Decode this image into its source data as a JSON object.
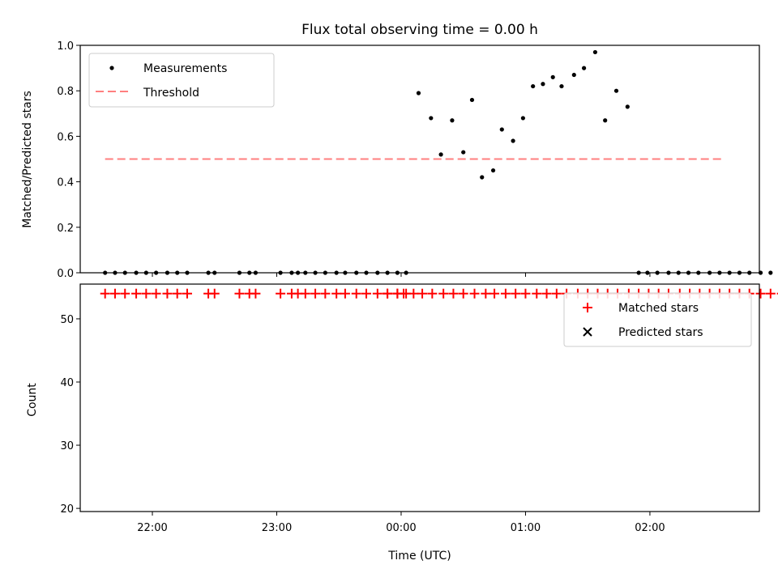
{
  "chart_data": [
    {
      "type": "scatter",
      "title": "Flux total observing time = 0.00 h",
      "xlabel": "",
      "ylabel": "Matched/Predicted stars",
      "ylim": [
        0,
        1.0
      ],
      "yticks": [
        0.0,
        0.2,
        0.4,
        0.6,
        0.8,
        1.0
      ],
      "ytick_labels": [
        "0.0",
        "0.2",
        "0.4",
        "0.6",
        "0.8",
        "1.0"
      ],
      "xlim_hours": [
        21.42,
        26.88
      ],
      "grid": false,
      "legend": {
        "position": "upper-left",
        "entries": [
          "Measurements",
          "Threshold"
        ]
      },
      "colors": {
        "measurements": "#000000",
        "threshold": "#ff7f7f"
      },
      "threshold": {
        "value": 0.5,
        "x_start": 21.62,
        "x_end": 26.58
      },
      "series": [
        {
          "name": "Measurements",
          "x": [
            21.62,
            21.7,
            21.78,
            21.87,
            21.95,
            22.03,
            22.12,
            22.2,
            22.28,
            22.45,
            22.5,
            22.7,
            22.78,
            22.83,
            23.03,
            23.12,
            23.17,
            23.23,
            23.31,
            23.39,
            23.48,
            23.55,
            23.64,
            23.72,
            23.81,
            23.89,
            23.97,
            24.04,
            24.14,
            24.24,
            24.32,
            24.41,
            24.5,
            24.57,
            24.65,
            24.74,
            24.81,
            24.9,
            24.98,
            25.06,
            25.14,
            25.22,
            25.29,
            25.39,
            25.47,
            25.56,
            25.64,
            25.73,
            25.82,
            25.91,
            25.98,
            26.06,
            26.15,
            26.23,
            26.31,
            26.39,
            26.48,
            26.56,
            26.64,
            26.72,
            26.8,
            26.89,
            26.97,
            27.06
          ],
          "y": [
            0,
            0,
            0,
            0,
            0,
            0,
            0,
            0,
            0,
            0,
            0,
            0,
            0,
            0,
            0,
            0,
            0,
            0,
            0,
            0,
            0,
            0,
            0,
            0,
            0,
            0,
            0,
            0,
            0.79,
            0.68,
            0.52,
            0.67,
            0.53,
            0.76,
            0.42,
            0.45,
            0.63,
            0.58,
            0.68,
            0.82,
            0.83,
            0.86,
            0.82,
            0.87,
            0.9,
            0.97,
            0.67,
            0.8,
            0.73,
            0,
            0,
            0,
            0,
            0,
            0,
            0,
            0,
            0,
            0,
            0,
            0,
            0,
            0,
            0
          ]
        }
      ]
    },
    {
      "type": "scatter",
      "title": "",
      "xlabel": "Time (UTC)",
      "ylabel": "Count",
      "ylim": [
        19.5,
        55.5
      ],
      "yticks": [
        20,
        30,
        40,
        50
      ],
      "ytick_labels": [
        "20",
        "30",
        "40",
        "50"
      ],
      "xticks_hours": [
        22,
        23,
        24,
        25,
        26
      ],
      "xtick_labels": [
        "22:00",
        "23:00",
        "00:00",
        "01:00",
        "02:00"
      ],
      "xlim_hours": [
        21.42,
        26.88
      ],
      "grid": false,
      "legend": {
        "position": "upper-right",
        "entries": [
          "Matched stars",
          "Predicted stars"
        ]
      },
      "colors": {
        "matched": "#ff0000",
        "predicted": "#000000"
      },
      "series": [
        {
          "name": "Matched stars",
          "x": [
            21.62,
            21.7,
            21.78,
            21.87,
            21.95,
            22.03,
            22.12,
            22.2,
            22.28,
            22.45,
            22.5,
            22.7,
            22.78,
            22.83,
            23.03,
            23.12,
            23.17,
            23.23,
            23.31,
            23.39,
            23.48,
            23.55,
            23.64,
            23.72,
            23.81,
            23.89,
            23.97,
            24.04,
            23.89,
            23.97,
            24.02,
            24.1,
            24.17,
            24.25,
            24.34,
            24.42,
            24.5,
            24.59,
            24.68,
            24.75,
            24.84,
            24.92,
            25.0,
            25.09,
            25.17,
            25.25,
            25.33,
            25.42,
            25.5,
            25.58,
            25.66,
            25.74,
            25.83,
            25.91,
            25.99,
            26.07,
            26.15,
            26.24,
            26.32,
            26.4,
            26.48,
            26.56,
            26.64,
            26.72,
            26.8,
            26.89,
            26.97,
            27.06
          ],
          "y": [
            54,
            54,
            54,
            54,
            54,
            54,
            54,
            54,
            54,
            54,
            54,
            54,
            54,
            54,
            54,
            54,
            54,
            54,
            54,
            54,
            54,
            54,
            54,
            54,
            54,
            54,
            54,
            54,
            54,
            54,
            54,
            54,
            54,
            54,
            54,
            54,
            54,
            54,
            54,
            54,
            54,
            54,
            54,
            54,
            54,
            54,
            54,
            54,
            54,
            54,
            54,
            54,
            54,
            54,
            54,
            54,
            54,
            54,
            54,
            54,
            54,
            54,
            54,
            54,
            54,
            54,
            54,
            54
          ]
        }
      ]
    }
  ]
}
